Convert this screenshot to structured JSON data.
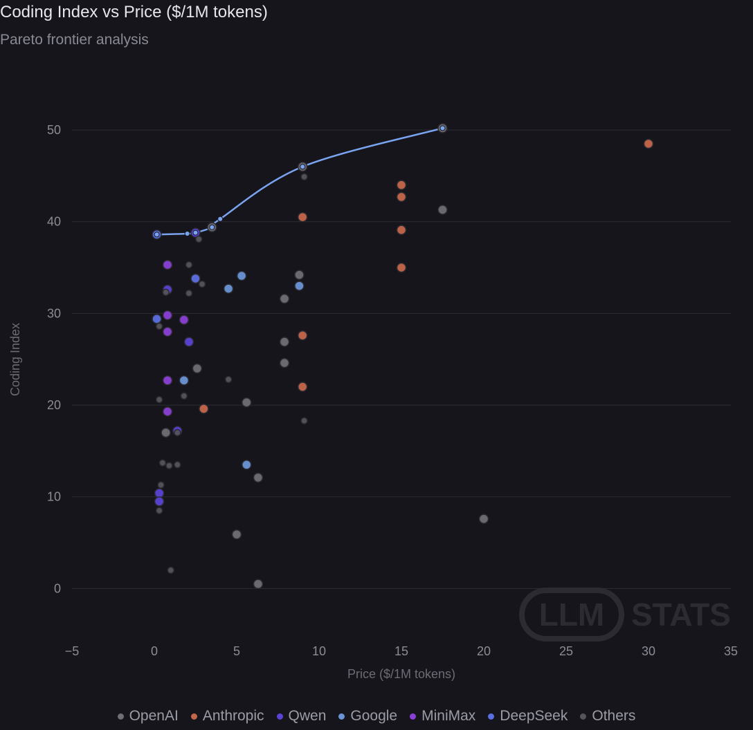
{
  "chart_data": {
    "type": "scatter",
    "title": "Coding Index vs Price ($/1M tokens)",
    "subtitle": "Pareto frontier analysis",
    "xlabel": "Price ($/1M tokens)",
    "ylabel": "Coding Index",
    "xlim": [
      -5,
      35
    ],
    "ylim": [
      -6,
      54
    ],
    "xticks": [
      -5,
      0,
      5,
      10,
      15,
      20,
      25,
      30,
      35
    ],
    "xtick_labels": [
      "−5",
      "0",
      "5",
      "10",
      "15",
      "20",
      "25",
      "30",
      "35"
    ],
    "yticks": [
      0,
      10,
      20,
      30,
      40,
      50
    ],
    "grid": "horizontal",
    "legend_position": "bottom",
    "watermark": {
      "left": "LLM",
      "right": "STATS"
    },
    "series": [
      {
        "name": "OpenAI",
        "color": "#6e6e74",
        "points": [
          [
            17.5,
            50.2
          ],
          [
            9.0,
            46.0
          ],
          [
            3.5,
            39.4
          ],
          [
            17.5,
            41.3
          ],
          [
            8.8,
            34.2
          ],
          [
            7.9,
            31.6
          ],
          [
            7.9,
            26.9
          ],
          [
            7.9,
            24.6
          ],
          [
            2.6,
            24.0
          ],
          [
            5.6,
            20.3
          ],
          [
            0.7,
            17.0
          ],
          [
            6.3,
            12.1
          ],
          [
            5.0,
            5.9
          ],
          [
            6.3,
            0.5
          ],
          [
            20.0,
            7.6
          ]
        ]
      },
      {
        "name": "Anthropic",
        "color": "#c4664c",
        "points": [
          [
            30.0,
            48.5
          ],
          [
            15.0,
            44.0
          ],
          [
            15.0,
            42.7
          ],
          [
            9.0,
            40.5
          ],
          [
            15.0,
            39.1
          ],
          [
            15.0,
            35.0
          ],
          [
            9.0,
            27.6
          ],
          [
            9.0,
            22.0
          ],
          [
            3.0,
            19.6
          ]
        ]
      },
      {
        "name": "Qwen",
        "color": "#5a43d6",
        "points": [
          [
            2.5,
            38.8
          ],
          [
            0.8,
            32.6
          ],
          [
            2.1,
            26.9
          ],
          [
            1.4,
            17.2
          ],
          [
            0.3,
            10.4
          ],
          [
            0.3,
            9.5
          ]
        ]
      },
      {
        "name": "Google",
        "color": "#6a93d6",
        "points": [
          [
            5.3,
            34.1
          ],
          [
            4.5,
            32.7
          ],
          [
            8.8,
            33.0
          ],
          [
            1.8,
            22.7
          ],
          [
            5.6,
            13.5
          ]
        ]
      },
      {
        "name": "MiniMax",
        "color": "#8a3fd6",
        "points": [
          [
            0.8,
            35.3
          ],
          [
            0.8,
            29.8
          ],
          [
            1.8,
            29.3
          ],
          [
            0.8,
            28.0
          ],
          [
            0.8,
            22.7
          ],
          [
            0.8,
            19.3
          ]
        ]
      },
      {
        "name": "DeepSeek",
        "color": "#5b6fe0",
        "points": [
          [
            0.15,
            38.6
          ],
          [
            2.5,
            33.8
          ],
          [
            0.15,
            29.4
          ]
        ]
      },
      {
        "name": "Others",
        "color": "#54545a",
        "points": [
          [
            9.1,
            44.9
          ],
          [
            2.7,
            38.1
          ],
          [
            2.1,
            35.3
          ],
          [
            2.9,
            33.2
          ],
          [
            2.1,
            32.2
          ],
          [
            0.7,
            32.3
          ],
          [
            0.3,
            28.6
          ],
          [
            4.5,
            22.8
          ],
          [
            1.8,
            21.0
          ],
          [
            0.3,
            20.6
          ],
          [
            9.1,
            18.3
          ],
          [
            1.4,
            17.0
          ],
          [
            0.5,
            13.7
          ],
          [
            0.9,
            13.4
          ],
          [
            1.4,
            13.5
          ],
          [
            0.4,
            11.3
          ],
          [
            0.3,
            8.5
          ],
          [
            1.0,
            2.0
          ]
        ]
      }
    ],
    "frontier": {
      "color": "#7aa3f0",
      "points": [
        [
          0.15,
          38.6
        ],
        [
          2.0,
          38.7
        ],
        [
          2.5,
          38.8
        ],
        [
          3.5,
          39.4
        ],
        [
          4.0,
          40.3
        ],
        [
          9.0,
          46.0
        ],
        [
          17.5,
          50.2
        ]
      ]
    },
    "legend": [
      "OpenAI",
      "Anthropic",
      "Qwen",
      "Google",
      "MiniMax",
      "DeepSeek",
      "Others"
    ],
    "legend_colors": [
      "#6e6e74",
      "#c4664c",
      "#5a43d6",
      "#6a93d6",
      "#8a3fd6",
      "#5b6fe0",
      "#54545a"
    ]
  }
}
